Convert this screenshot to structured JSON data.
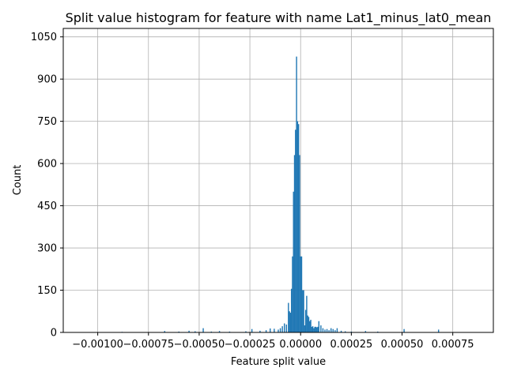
{
  "chart_data": {
    "type": "bar",
    "title": "Split value histogram for feature with name Lat1_minus_lat0_mean",
    "xlabel": "Feature split value",
    "ylabel": "Count",
    "xlim": [
      -0.00117,
      0.00095
    ],
    "ylim": [
      0,
      1080
    ],
    "grid": true,
    "bar_color": "#1f77b4",
    "x_ticks": [
      {
        "value": -0.001,
        "label": "−0.00100"
      },
      {
        "value": -0.00075,
        "label": "−0.00075"
      },
      {
        "value": -0.0005,
        "label": "−0.00050"
      },
      {
        "value": -0.00025,
        "label": "−0.00025"
      },
      {
        "value": 0.0,
        "label": "0.00000"
      },
      {
        "value": 0.00025,
        "label": "0.00025"
      },
      {
        "value": 0.0005,
        "label": "0.00050"
      },
      {
        "value": 0.00075,
        "label": "0.00075"
      }
    ],
    "y_ticks": [
      {
        "value": 0,
        "label": "0"
      },
      {
        "value": 150,
        "label": "150"
      },
      {
        "value": 300,
        "label": "300"
      },
      {
        "value": 450,
        "label": "450"
      },
      {
        "value": 600,
        "label": "600"
      },
      {
        "value": 750,
        "label": "750"
      },
      {
        "value": 900,
        "label": "900"
      },
      {
        "value": 1050,
        "label": "1050"
      }
    ],
    "bar_width": 5.5e-06,
    "x": [
      -0.00088,
      -0.00067,
      -0.0006,
      -0.00055,
      -0.00052,
      -0.00048,
      -0.00044,
      -0.0004,
      -0.00035,
      -0.00027,
      -0.00024,
      -0.0002,
      -0.00017,
      -0.00015,
      -0.00013,
      -0.00011,
      -0.0001,
      -9e-05,
      -8e-05,
      -7e-05,
      -6e-05,
      -5.5e-05,
      -5e-05,
      -4.5e-05,
      -4e-05,
      -3.5e-05,
      -3e-05,
      -2.5e-05,
      -2e-05,
      -1.5e-05,
      -1e-05,
      -5e-06,
      0.0,
      5e-06,
      1e-05,
      1.5e-05,
      2e-05,
      2.5e-05,
      3e-05,
      3.5e-05,
      4e-05,
      4.5e-05,
      5e-05,
      5.5e-05,
      6e-05,
      6.5e-05,
      7e-05,
      7.5e-05,
      8e-05,
      8.5e-05,
      9e-05,
      0.0001,
      0.00011,
      0.00012,
      0.00013,
      0.00014,
      0.00015,
      0.00016,
      0.00017,
      0.00018,
      0.0002,
      0.00022,
      0.00025,
      0.00032,
      0.00038,
      0.00051,
      0.00068
    ],
    "values": [
      2,
      5,
      3,
      6,
      4,
      15,
      3,
      5,
      3,
      4,
      12,
      6,
      8,
      14,
      13,
      10,
      15,
      22,
      32,
      28,
      105,
      75,
      70,
      155,
      270,
      500,
      630,
      720,
      980,
      750,
      740,
      630,
      270,
      270,
      150,
      150,
      25,
      80,
      130,
      60,
      55,
      40,
      45,
      20,
      22,
      15,
      20,
      20,
      18,
      20,
      40,
      25,
      15,
      10,
      12,
      8,
      15,
      12,
      8,
      15,
      6,
      4,
      3,
      5,
      3,
      12,
      10
    ]
  }
}
